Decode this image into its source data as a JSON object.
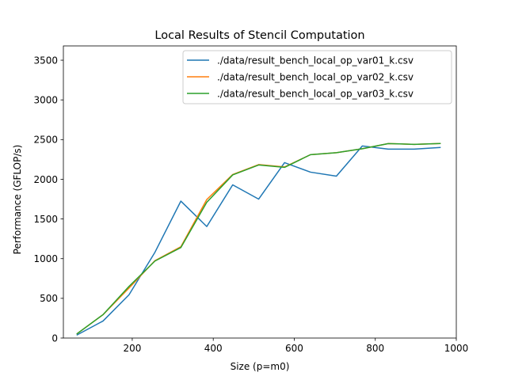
{
  "chart_data": {
    "type": "line",
    "title": "Local Results of Stencil Computation",
    "xlabel": "Size (p=m0)",
    "ylabel": "Performance (GFLOP/s)",
    "xlim": [
      30,
      1000
    ],
    "ylim": [
      0,
      3680
    ],
    "xticks": [
      200,
      400,
      600,
      800,
      1000
    ],
    "yticks": [
      0,
      500,
      1000,
      1500,
      2000,
      2500,
      3000,
      3500
    ],
    "grid": false,
    "legend_position": "top-right",
    "x": [
      64,
      128,
      192,
      256,
      320,
      384,
      448,
      512,
      576,
      640,
      704,
      768,
      832,
      896,
      960
    ],
    "series": [
      {
        "name": "./data/result_bench_local_op_var01_k.csv",
        "color": "#1f77b4",
        "values": [
          40,
          215,
          545,
          1080,
          1725,
          1405,
          1930,
          1750,
          2210,
          2090,
          2040,
          2420,
          2380,
          2380,
          2400
        ]
      },
      {
        "name": "./data/result_bench_local_op_var02_k.csv",
        "color": "#ff7f0e",
        "values": [
          55,
          295,
          630,
          975,
          1150,
          1745,
          2060,
          2185,
          2155,
          2310,
          2335,
          2385,
          2450,
          2440,
          2450
        ]
      },
      {
        "name": "./data/result_bench_local_op_var03_k.csv",
        "color": "#2ca02c",
        "values": [
          55,
          295,
          650,
          970,
          1140,
          1710,
          2055,
          2180,
          2150,
          2310,
          2335,
          2385,
          2450,
          2440,
          2450
        ]
      }
    ]
  }
}
